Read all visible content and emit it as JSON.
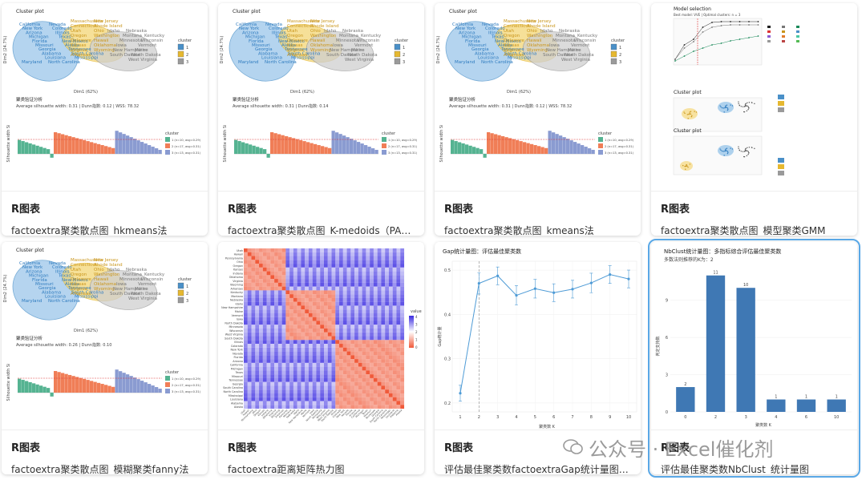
{
  "cards": [
    {
      "category": "R图表",
      "caption": "factoextra聚类散点图_hkmeans法",
      "plot_title": "Cluster plot",
      "section": "聚类验证分析",
      "stats": "Average silhouette width: 0.31  |  Dunn指数: 0.12  |  WSS: 78.32"
    },
    {
      "category": "R图表",
      "caption": "factoextra聚类散点图_K-medoids（PAM）法",
      "plot_title": "Cluster plot",
      "section": "聚类验证分析",
      "stats": "Average silhouette width: 0.31  |  Dunn指数: 0.14"
    },
    {
      "category": "R图表",
      "caption": "factoextra聚类散点图_kmeans法",
      "plot_title": "Cluster plot",
      "section": "聚类验证分析",
      "stats": "Average silhouette width: 0.31  |  Dunn指数: 0.12  |  WSS: 78.32"
    },
    {
      "category": "R图表",
      "caption": "factoextra聚类散点图_模型聚类GMM",
      "plot_title": "Model selection",
      "plot_subtitle": "Best model: VVE | Optimal clusters: n = 3",
      "plot_title2": "Cluster plot",
      "plot_title3": "Cluster plot"
    },
    {
      "category": "R图表",
      "caption": "factoextra聚类散点图_模糊聚类fanny法",
      "plot_title": "Cluster plot",
      "section": "聚类验证分析",
      "stats": "Average silhouette width: 0.26  |  Dunn指数: 0.10"
    },
    {
      "category": "R图表",
      "caption": "factoextra距离矩阵热力图",
      "legend_title": "value"
    },
    {
      "category": "R图表",
      "caption": "评估最佳聚类数factoextraGap统计量图_clusGap",
      "plot_title": "Gap统计量图：评估最佳聚类数",
      "ylabel": "Gap统计量",
      "xlabel": "聚类数 K"
    },
    {
      "category": "R图表",
      "caption": "评估最佳聚类数NbClust_统计量图",
      "plot_title": "NbClust统计量图：多指标综合评估最佳聚类数",
      "plot_subtitle": "多数法则推荐的K为：2",
      "ylabel": "判定支持数",
      "xlabel": "聚类数 K"
    }
  ],
  "cluster_legend": {
    "title": "cluster",
    "items": [
      "1",
      "2",
      "3"
    ]
  },
  "sil_legend": {
    "title": "cluster",
    "items": [
      "1 (n=10, avg=0.29)",
      "2 (n=17, avg=0.31)",
      "3 (n=13, avg=0.31)"
    ]
  },
  "axes": {
    "dim1": "Dim1 (62%)",
    "dim2": "Dim2 (24.7%)",
    "sil_y": "Silhouette width Si"
  },
  "state_labels": {
    "blue": [
      "California",
      "Nevada",
      "New York",
      "Colorado",
      "Arizona",
      "Illinois",
      "Michigan",
      "Texas",
      "Florida",
      "New Mexico",
      "Missouri",
      "Alaska",
      "Georgia",
      "Tennessee",
      "Alabama",
      "South Carolina",
      "Louisiana",
      "Mississippi",
      "North Carolina",
      "Maryland"
    ],
    "yellow": [
      "Massachusetts",
      "New Jersey",
      "Connecticut",
      "Rhode Island",
      "Utah",
      "Ohio",
      "Oregon",
      "Washington",
      "Delaware",
      "Hawaii",
      "Kansas",
      "Oklahoma",
      "Virginia",
      "Wyoming",
      "Arkansas"
    ],
    "grey": [
      "Idaho",
      "Nebraska",
      "Kentucky",
      "Montana",
      "Wisconsin",
      "Minnesota",
      "Vermont",
      "Iowa",
      "Maine",
      "New Hampshire",
      "North Dakota",
      "South Dakota",
      "West Virginia"
    ]
  },
  "colors": {
    "blue": "#4a90c8",
    "yellow": "#e6b830",
    "grey": "#9a9a9a",
    "green": "#55b391",
    "orange": "#f07e57",
    "purple": "#8a9bd1",
    "accent": "#4e9bd6"
  },
  "heatmap_rows": [
    "Utah",
    "Hawaii",
    "Pennsylvania",
    "Ohio",
    "Oregon",
    "Kansas",
    "Indiana",
    "Oklahoma",
    "Virginia",
    "Wyoming",
    "Arkansas",
    "Kentucky",
    "Montana",
    "Nebraska",
    "Idaho",
    "New Hampshire",
    "Maine",
    "Vermont",
    "Iowa",
    "North Dakota",
    "Minnesota",
    "Wisconsin",
    "West Virginia",
    "South Dakota",
    "Illinois",
    "Colorado",
    "New York",
    "Nevada",
    "Florida",
    "Arizona",
    "California",
    "Michigan",
    "Texas",
    "Missouri",
    "Tennessee",
    "Georgia",
    "South Carolina",
    "North Carolina",
    "Mississippi",
    "Louisiana",
    "Alabama",
    "Alaska"
  ],
  "heatmap_legend": [
    "4",
    "3",
    "2",
    "1",
    "0"
  ],
  "chart_data": [
    {
      "type": "line",
      "title": "Gap统计量图：评估最佳聚类数",
      "xlabel": "聚类数 K",
      "ylabel": "Gap统计量",
      "x": [
        1,
        2,
        3,
        4,
        5,
        6,
        7,
        8,
        9,
        10
      ],
      "y": [
        0.222,
        0.47,
        0.487,
        0.443,
        0.458,
        0.449,
        0.457,
        0.471,
        0.49,
        0.48
      ],
      "err": [
        0.018,
        0.024,
        0.02,
        0.022,
        0.021,
        0.02,
        0.02,
        0.022,
        0.02,
        0.02
      ],
      "ylim": [
        0.18,
        0.52
      ],
      "yticks": [
        "0.5",
        "0.4",
        "0.3",
        "0.2"
      ],
      "optimal_k": 2
    },
    {
      "type": "bar",
      "title": "NbClust统计量图：多指标综合评估最佳聚类数",
      "xlabel": "聚类数 K",
      "ylabel": "判定支持数",
      "categories": [
        "0",
        "2",
        "3",
        "4",
        "6",
        "10"
      ],
      "values": [
        2,
        11,
        10,
        1,
        1,
        1
      ],
      "ylim": [
        0,
        11.5
      ],
      "yticks": [
        "0",
        "3",
        "6",
        "9"
      ]
    }
  ]
}
